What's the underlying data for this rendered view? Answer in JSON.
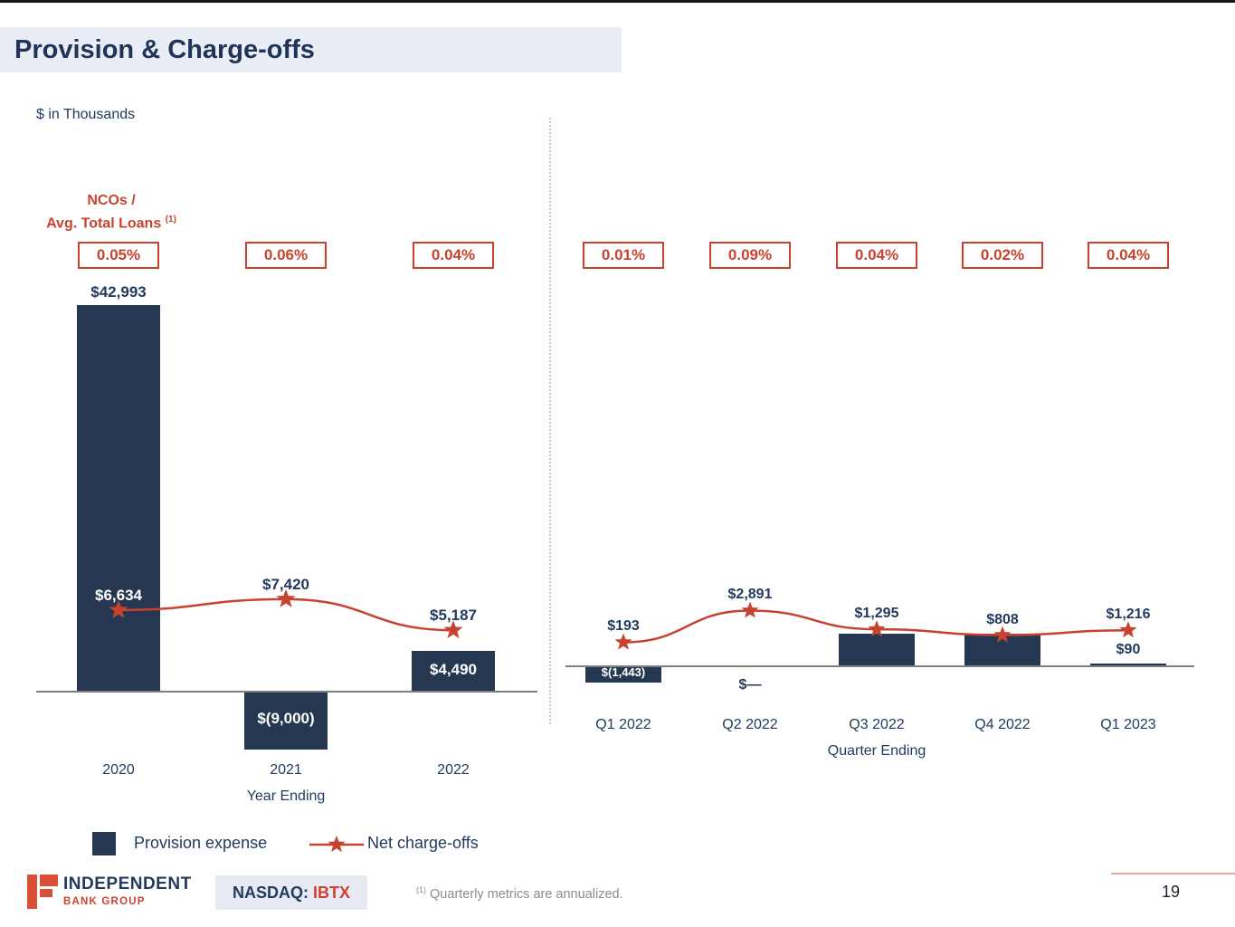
{
  "slide": {
    "title": "Provision & Charge-offs",
    "units_note": "$ in Thousands",
    "page_number": "19"
  },
  "nco_ratio_header": {
    "line1": "NCOs /",
    "line2": "Avg. Total Loans",
    "superscript": "(1)"
  },
  "legend": {
    "provision_label": "Provision expense",
    "nco_label": "Net charge-offs"
  },
  "footer": {
    "logo_line1": "INDEPENDENT",
    "logo_line2": "BANK GROUP",
    "nasdaq_label": "NASDAQ:",
    "ticker": "IBTX",
    "footnote_marker": "(1)",
    "footnote_text": "Quarterly metrics are annualized."
  },
  "colors": {
    "navy_bar": "#253751",
    "navy_text": "#223A5E",
    "red": "#C7432F",
    "title_band_bg": "#E9EDF5",
    "badge_bg": "#E7EAF2",
    "footnote_gray": "#8C8C8C",
    "axis_gray": "#7F7F7F",
    "divider_gray": "#C9C9C9",
    "accent_line": "#EAA79B",
    "white": "#FFFFFF"
  },
  "icons": {
    "star": "★"
  },
  "chart_data": [
    {
      "type": "bar",
      "name": "annual-provision-chart",
      "xlabel": "Year Ending",
      "categories": [
        "2020",
        "2021",
        "2022"
      ],
      "series": [
        {
          "name": "Provision expense",
          "type": "bar",
          "values": [
            42993,
            -9000,
            4490
          ],
          "labels": [
            "$42,993",
            "$(9,000)",
            "$4,490"
          ]
        },
        {
          "name": "Net charge-offs",
          "type": "line",
          "values": [
            6634,
            7420,
            5187
          ],
          "labels": [
            "$6,634",
            "$7,420",
            "$5,187"
          ]
        },
        {
          "name": "NCOs / Avg. Total Loans (1)",
          "type": "callout",
          "labels": [
            "0.05%",
            "0.06%",
            "0.04%"
          ]
        }
      ],
      "legend_position": "bottom",
      "grid": false
    },
    {
      "type": "bar",
      "name": "quarterly-provision-chart",
      "xlabel": "Quarter Ending",
      "categories": [
        "Q1 2022",
        "Q2 2022",
        "Q3 2022",
        "Q4 2022",
        "Q1 2023"
      ],
      "series": [
        {
          "name": "Provision expense",
          "type": "bar",
          "values": [
            -1443,
            0,
            3000,
            2933,
            90
          ],
          "labels": [
            "$(1,443)",
            "$—",
            "",
            "",
            "$90"
          ]
        },
        {
          "name": "Net charge-offs",
          "type": "line",
          "values": [
            193,
            2891,
            1295,
            808,
            1216
          ],
          "labels": [
            "$193",
            "$2,891",
            "$1,295",
            "$808",
            "$1,216"
          ]
        },
        {
          "name": "NCOs / Avg. Total Loans (1)",
          "type": "callout",
          "labels": [
            "0.01%",
            "0.09%",
            "0.04%",
            "0.02%",
            "0.04%"
          ]
        }
      ],
      "legend_position": "bottom",
      "grid": false
    }
  ]
}
